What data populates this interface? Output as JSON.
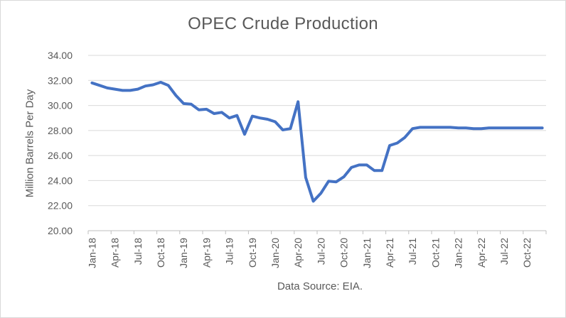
{
  "chart_data": {
    "type": "line",
    "title": "OPEC Crude Production",
    "ylabel": "Million Barrels Per Day",
    "xlabel": "Data Source: EIA.",
    "ylim": [
      20,
      34
    ],
    "yticks": [
      "20.00",
      "22.00",
      "24.00",
      "26.00",
      "28.00",
      "30.00",
      "32.00",
      "34.00"
    ],
    "grid": true,
    "legend": "none",
    "line_color": "#4472c4",
    "x_tick_labels": [
      "Jan-18",
      "Apr-18",
      "Jul-18",
      "Oct-18",
      "Jan-19",
      "Apr-19",
      "Jul-19",
      "Oct-19",
      "Jan-20",
      "Apr-20",
      "Jul-20",
      "Oct-20",
      "Jan-21",
      "Apr-21",
      "Jul-21",
      "Oct-21",
      "Jan-22",
      "Apr-22",
      "Jul-22",
      "Oct-22"
    ],
    "x": [
      "2018-01",
      "2018-02",
      "2018-03",
      "2018-04",
      "2018-05",
      "2018-06",
      "2018-07",
      "2018-08",
      "2018-09",
      "2018-10",
      "2018-11",
      "2018-12",
      "2019-01",
      "2019-02",
      "2019-03",
      "2019-04",
      "2019-05",
      "2019-06",
      "2019-07",
      "2019-08",
      "2019-09",
      "2019-10",
      "2019-11",
      "2019-12",
      "2020-01",
      "2020-02",
      "2020-03",
      "2020-04",
      "2020-05",
      "2020-06",
      "2020-07",
      "2020-08",
      "2020-09",
      "2020-10",
      "2020-11",
      "2020-12",
      "2021-01",
      "2021-02",
      "2021-03",
      "2021-04",
      "2021-05",
      "2021-06",
      "2021-07",
      "2021-08",
      "2021-09",
      "2021-10",
      "2021-11",
      "2021-12",
      "2022-01",
      "2022-02",
      "2022-03",
      "2022-04",
      "2022-05",
      "2022-06",
      "2022-07",
      "2022-08",
      "2022-09",
      "2022-10",
      "2022-11",
      "2022-12"
    ],
    "series": [
      {
        "values": [
          31.8,
          31.6,
          31.4,
          31.3,
          31.2,
          31.2,
          31.3,
          31.55,
          31.65,
          31.85,
          31.6,
          30.8,
          30.15,
          30.1,
          29.65,
          29.7,
          29.35,
          29.45,
          29.0,
          29.2,
          27.7,
          29.15,
          29.0,
          28.9,
          28.7,
          28.05,
          28.15,
          30.3,
          24.25,
          22.35,
          23.0,
          23.95,
          23.9,
          24.3,
          25.05,
          25.25,
          25.25,
          24.8,
          24.8,
          26.8,
          27.0,
          27.45,
          28.15,
          28.25,
          28.25,
          28.25,
          28.25,
          28.25,
          28.2,
          28.2,
          28.15,
          28.15,
          28.2,
          28.2,
          28.2,
          28.2,
          28.2,
          28.2,
          28.2,
          28.2
        ]
      }
    ]
  }
}
